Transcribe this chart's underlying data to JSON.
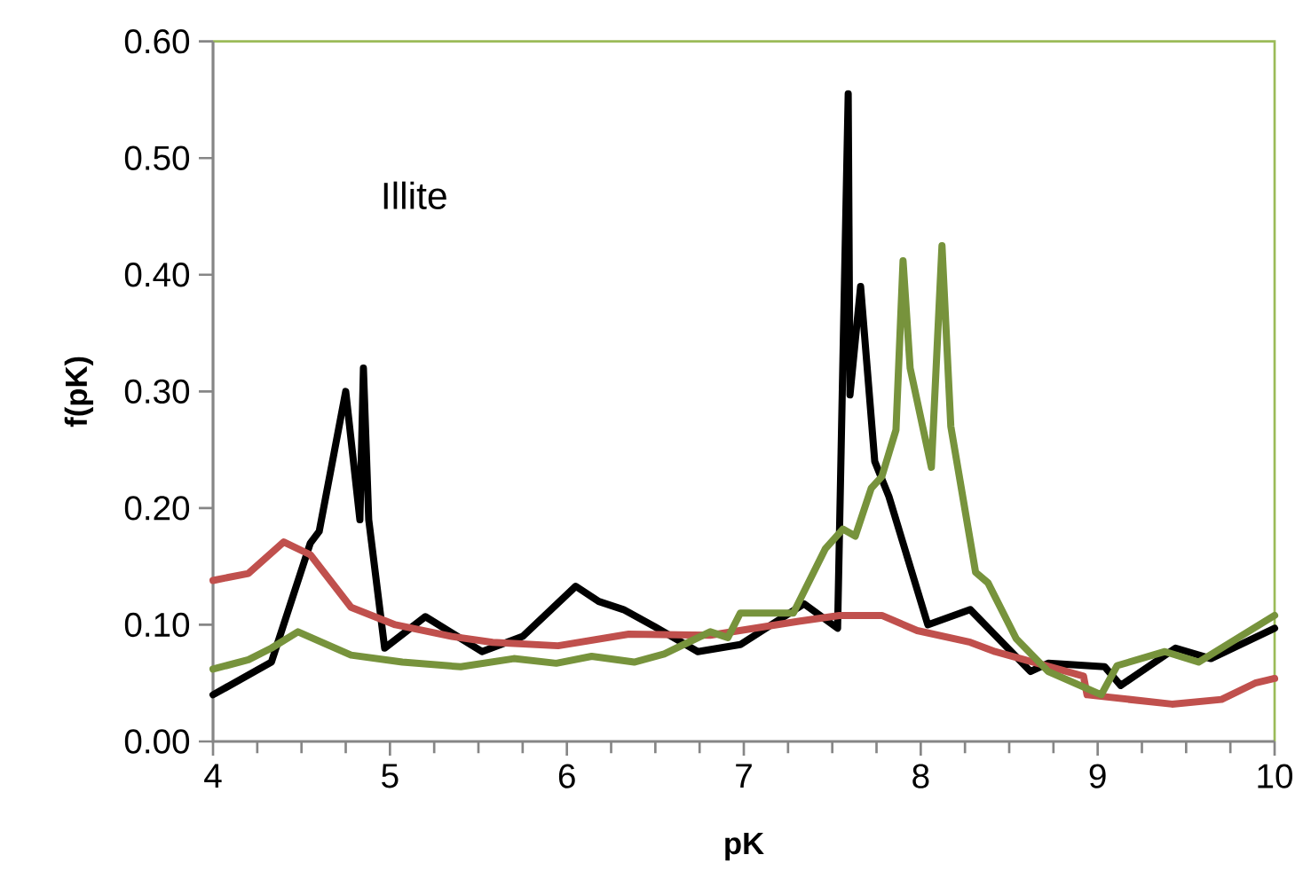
{
  "chart_data": {
    "type": "line",
    "xlabel": "pK",
    "ylabel": "f(pK)",
    "annotations": [
      "Illite"
    ],
    "xlim": [
      4,
      10
    ],
    "ylim": [
      0,
      0.6
    ],
    "xticks": [
      4,
      5,
      6,
      7,
      8,
      9,
      10
    ],
    "yticks": [
      {
        "value": 0,
        "label": "0.00"
      },
      {
        "value": 0.1,
        "label": "0.10"
      },
      {
        "value": 0.2,
        "label": "0.20"
      },
      {
        "value": 0.3,
        "label": "0.30"
      },
      {
        "value": 0.4,
        "label": "0.40"
      },
      {
        "value": 0.5,
        "label": "0.50"
      },
      {
        "value": 0.6,
        "label": "0.60"
      }
    ],
    "grid": false,
    "marker": "none",
    "line_style": "solid",
    "series": [
      {
        "color": "#000000",
        "x": [
          4.0,
          4.33,
          4.55,
          4.6,
          4.75,
          4.83,
          4.85,
          4.88,
          4.97,
          5.2,
          5.52,
          5.75,
          6.05,
          6.18,
          6.32,
          6.5,
          6.74,
          6.98,
          7.34,
          7.53,
          7.59,
          7.6,
          7.66,
          7.74,
          7.82,
          8.04,
          8.28,
          8.62,
          8.72,
          9.04,
          9.13,
          9.44,
          9.64,
          10.0
        ],
        "values": [
          0.04,
          0.068,
          0.17,
          0.18,
          0.3,
          0.19,
          0.32,
          0.19,
          0.08,
          0.107,
          0.077,
          0.09,
          0.133,
          0.12,
          0.113,
          0.098,
          0.077,
          0.083,
          0.118,
          0.097,
          0.555,
          0.297,
          0.39,
          0.24,
          0.21,
          0.1,
          0.113,
          0.06,
          0.067,
          0.064,
          0.048,
          0.08,
          0.071,
          0.097
        ]
      },
      {
        "color": "#c0504d",
        "x": [
          4.0,
          4.2,
          4.4,
          4.55,
          4.78,
          5.03,
          5.35,
          5.58,
          5.95,
          6.35,
          6.81,
          7.31,
          7.54,
          7.78,
          7.98,
          8.28,
          8.42,
          8.92,
          8.94,
          9.42,
          9.7,
          9.89,
          10.0
        ],
        "values": [
          0.138,
          0.144,
          0.171,
          0.16,
          0.115,
          0.1,
          0.09,
          0.085,
          0.082,
          0.092,
          0.091,
          0.103,
          0.108,
          0.108,
          0.095,
          0.085,
          0.077,
          0.056,
          0.04,
          0.032,
          0.036,
          0.05,
          0.054
        ]
      },
      {
        "color": "#77933c",
        "x": [
          4.0,
          4.2,
          4.33,
          4.48,
          4.78,
          5.07,
          5.4,
          5.7,
          5.94,
          6.14,
          6.38,
          6.55,
          6.81,
          6.91,
          6.98,
          7.28,
          7.46,
          7.56,
          7.63,
          7.72,
          7.78,
          7.86,
          7.9,
          7.94,
          8.06,
          8.12,
          8.17,
          8.31,
          8.38,
          8.54,
          8.72,
          9.02,
          9.11,
          9.38,
          9.57,
          10.0
        ],
        "values": [
          0.062,
          0.07,
          0.08,
          0.094,
          0.074,
          0.068,
          0.064,
          0.071,
          0.067,
          0.073,
          0.068,
          0.075,
          0.094,
          0.089,
          0.11,
          0.11,
          0.165,
          0.182,
          0.176,
          0.217,
          0.227,
          0.267,
          0.412,
          0.32,
          0.235,
          0.425,
          0.27,
          0.145,
          0.136,
          0.088,
          0.06,
          0.04,
          0.065,
          0.077,
          0.068,
          0.108
        ]
      }
    ]
  }
}
